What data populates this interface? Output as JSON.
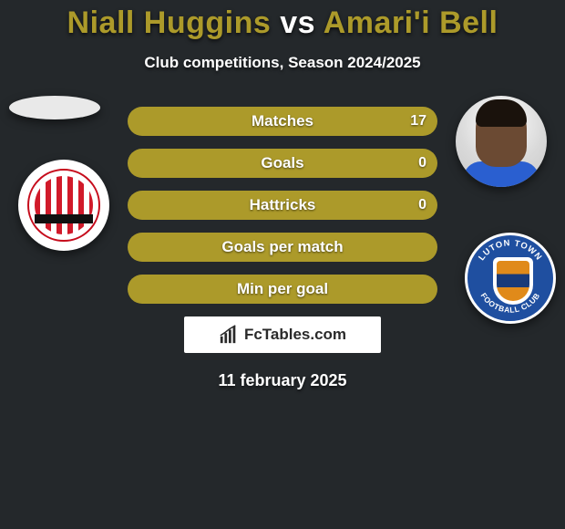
{
  "accent_color": "#ac9a2a",
  "player1_color": "#ac9a2a",
  "player2_color": "#ac9a2a",
  "neutral_fill": "#ac9a2a",
  "title": {
    "player1": "Niall Huggins",
    "vs": "vs",
    "player2": "Amari'i Bell"
  },
  "subtitle": "Club competitions, Season 2024/2025",
  "club_right_text_top": "LUTON TOWN",
  "club_right_text_bottom": "FOOTBALL CLUB",
  "bars": [
    {
      "label": "Matches",
      "left": null,
      "right": "17",
      "left_pct": 4,
      "right_pct": 96
    },
    {
      "label": "Goals",
      "left": null,
      "right": "0",
      "left_pct": 50,
      "right_pct": 50
    },
    {
      "label": "Hattricks",
      "left": null,
      "right": "0",
      "left_pct": 50,
      "right_pct": 50
    },
    {
      "label": "Goals per match",
      "left": null,
      "right": null,
      "left_pct": 50,
      "right_pct": 50
    },
    {
      "label": "Min per goal",
      "left": null,
      "right": null,
      "left_pct": 50,
      "right_pct": 50
    }
  ],
  "branding": "FcTables.com",
  "date": "11 february 2025"
}
